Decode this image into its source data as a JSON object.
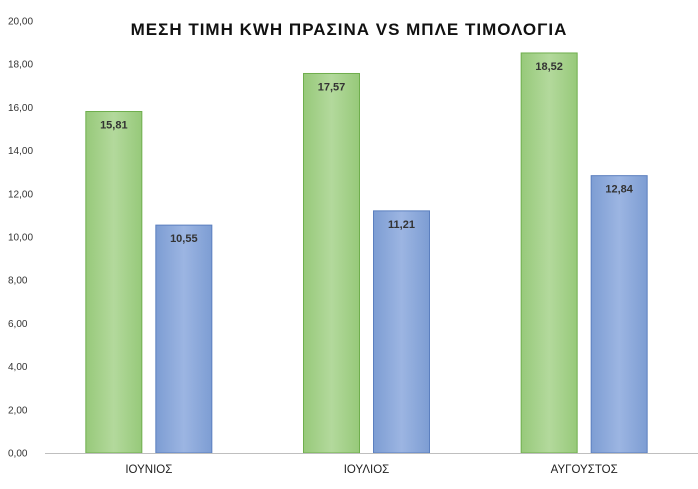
{
  "chart_data": {
    "type": "bar",
    "title": "ΜΕΣΗ ΤΙΜΗ KWH ΠΡΑΣΙΝΑ VS ΜΠΛΕ ΤΙΜΟΛΟΓΙΑ",
    "categories": [
      "ΙΟΥΝΙΟΣ",
      "ΙΟΥΛΙΟΣ",
      "ΑΥΓΟΥΣΤΟΣ"
    ],
    "series": [
      {
        "values": [
          15.81,
          17.57,
          18.52
        ],
        "labels": [
          "15,81",
          "17,57",
          "18,52"
        ],
        "color": "#a9d18e"
      },
      {
        "values": [
          10.55,
          11.21,
          12.84
        ],
        "labels": [
          "10,55",
          "11,21",
          "12,84"
        ],
        "color": "#8faadc"
      }
    ],
    "ylim": [
      0,
      20
    ],
    "yticks": [
      0,
      2,
      4,
      6,
      8,
      10,
      12,
      14,
      16,
      18,
      20
    ],
    "ytick_labels": [
      "0,00",
      "2,00",
      "4,00",
      "6,00",
      "8,00",
      "10,00",
      "12,00",
      "14,00",
      "16,00",
      "18,00",
      "20,00"
    ],
    "grid": false,
    "legend": "none",
    "xlabel": "",
    "ylabel": ""
  }
}
